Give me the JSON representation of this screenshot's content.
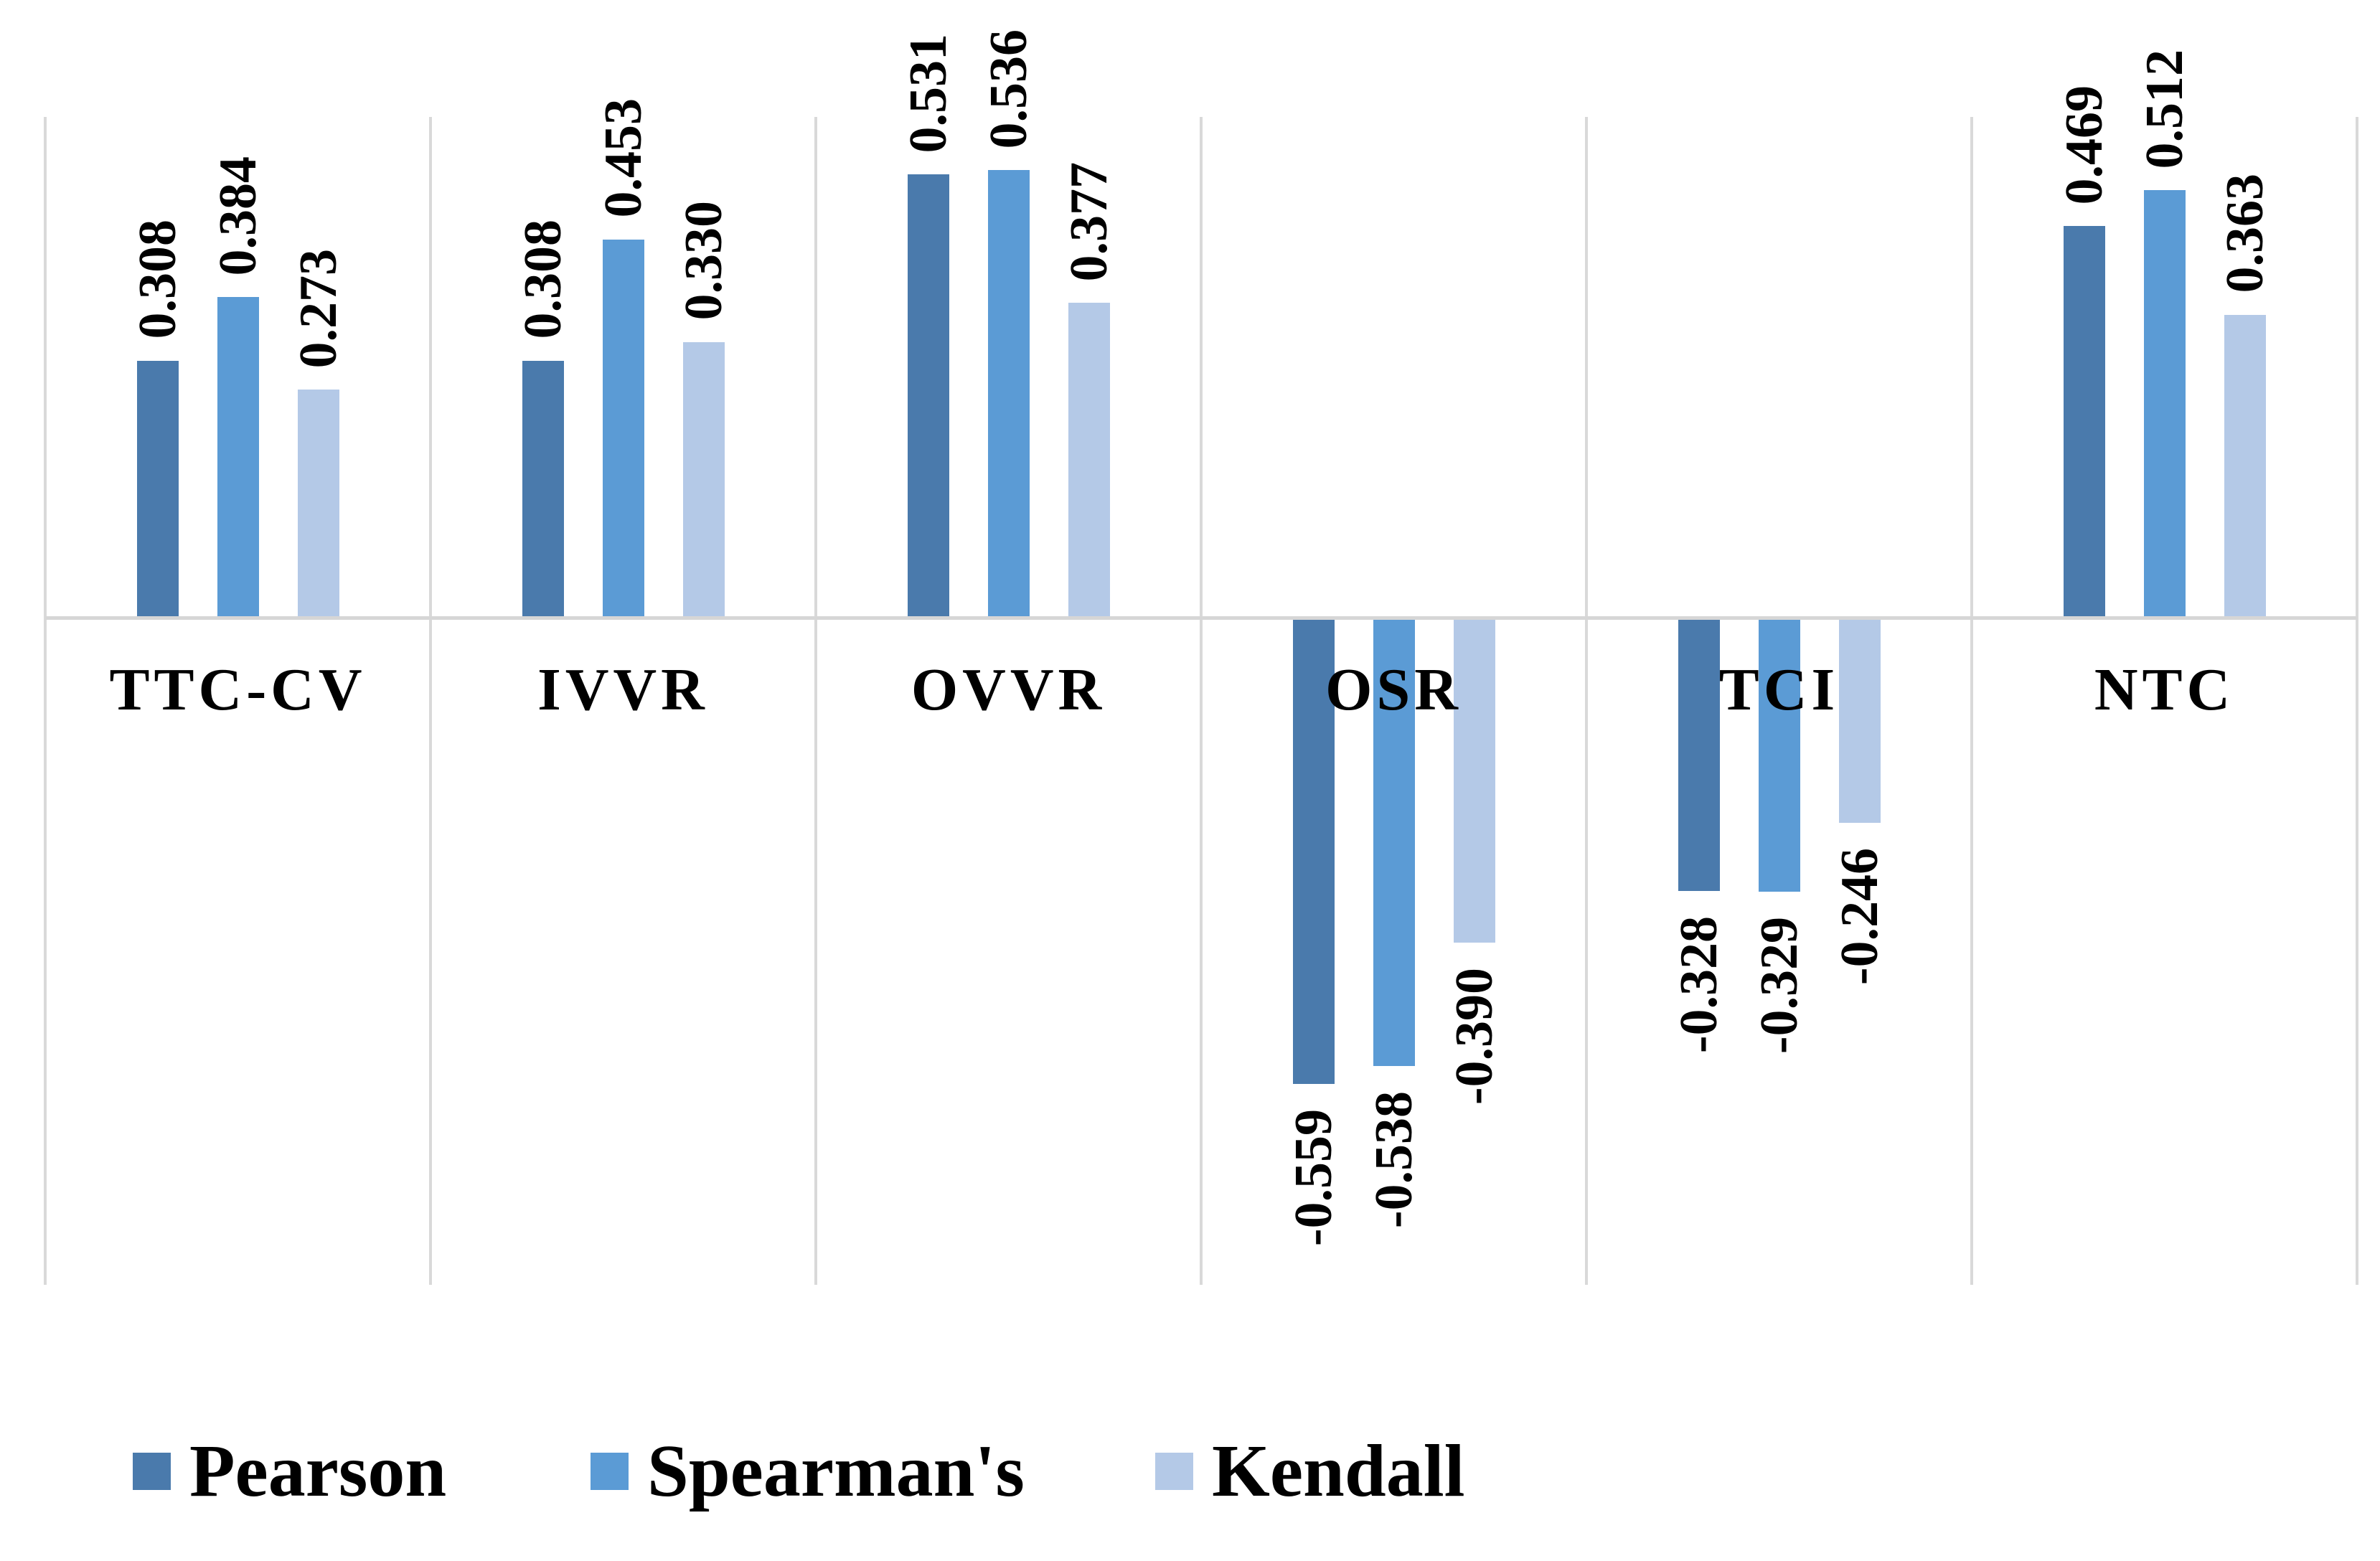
{
  "chart_data": {
    "type": "bar",
    "title": "",
    "xlabel": "",
    "ylabel": "",
    "categories": [
      "TTC-CV",
      "IVVR",
      "OVVR",
      "OSR",
      "TCI",
      "NTC"
    ],
    "series": [
      {
        "name": "Pearson",
        "color": "#4A7AAC",
        "values": [
          0.308,
          0.308,
          0.531,
          -0.559,
          -0.328,
          0.469
        ]
      },
      {
        "name": "Spearman's",
        "color": "#5B9BD5",
        "values": [
          0.384,
          0.453,
          0.536,
          -0.538,
          -0.329,
          0.512
        ]
      },
      {
        "name": "Kendall",
        "color": "#B4C9E7",
        "values": [
          0.273,
          0.33,
          0.377,
          -0.39,
          -0.246,
          0.363
        ]
      }
    ],
    "value_label_decimals": 3,
    "ylim": [
      -0.8,
      0.6
    ],
    "grid": "vertical-only",
    "grid_color": "#d9d9d9",
    "axis_line_color": "#d6d6d6",
    "background_color": "#ffffff",
    "legend_position": "bottom-left"
  }
}
